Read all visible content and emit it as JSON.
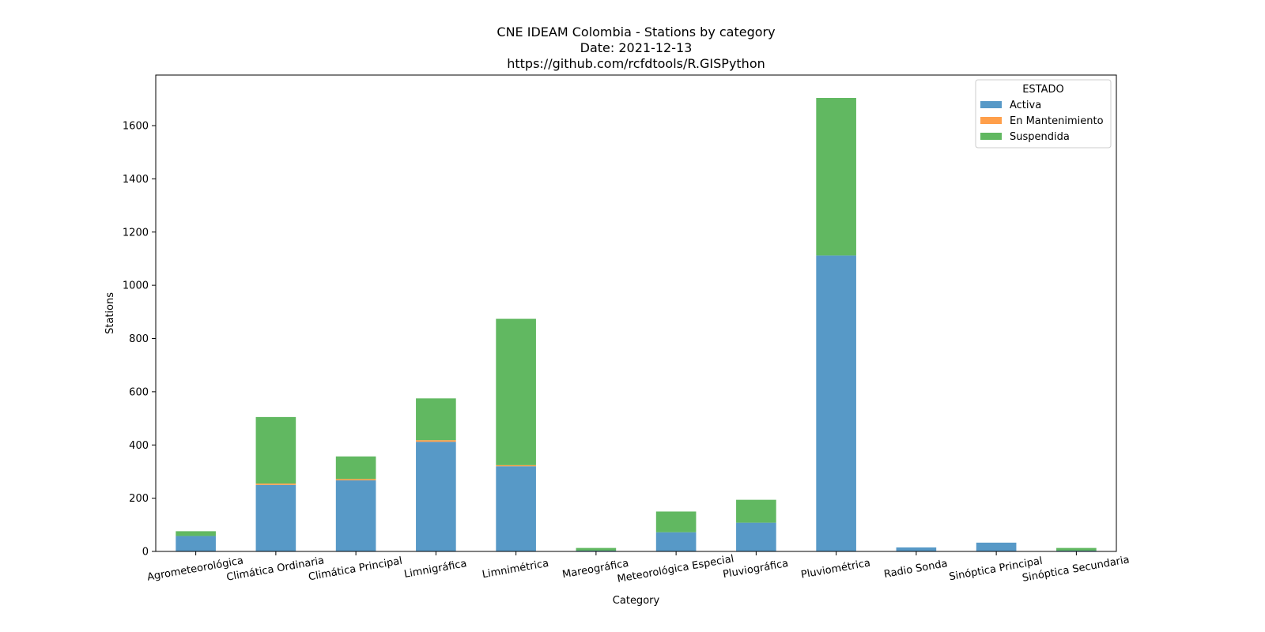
{
  "chart_data": {
    "type": "bar",
    "stacked": true,
    "title": [
      "CNE IDEAM Colombia -  Stations by category",
      "Date:  2021-12-13",
      "https://github.com/rcfdtools/R.GISPython"
    ],
    "xlabel": "Category",
    "ylabel": "Stations",
    "ylim": [
      0,
      1790
    ],
    "yticks": [
      0,
      200,
      400,
      600,
      800,
      1000,
      1200,
      1400,
      1600
    ],
    "categories": [
      "Agrometeorológica",
      "Climática Ordinaria",
      "Climática Principal",
      "Limnigráfica",
      "Limnimétrica",
      "Mareográfica",
      "Meteorológica Especial",
      "Pluviográfica",
      "Pluviométrica",
      "Radio Sonda",
      "Sinóptica Principal",
      "Sinóptica Secundaria"
    ],
    "series": [
      {
        "name": "Activa",
        "color": "#5799c7",
        "values": [
          58,
          250,
          267,
          412,
          320,
          3,
          72,
          108,
          1112,
          15,
          33,
          3
        ]
      },
      {
        "name": "En Mantenimiento",
        "color": "#ff9f4a",
        "values": [
          0,
          5,
          5,
          6,
          4,
          0,
          0,
          0,
          0,
          0,
          0,
          0
        ]
      },
      {
        "name": "Suspendida",
        "color": "#61b861",
        "values": [
          18,
          250,
          85,
          157,
          550,
          10,
          78,
          86,
          592,
          0,
          0,
          10
        ]
      }
    ],
    "legend": {
      "title": "ESTADO",
      "position": "top-right"
    },
    "grid": false
  }
}
